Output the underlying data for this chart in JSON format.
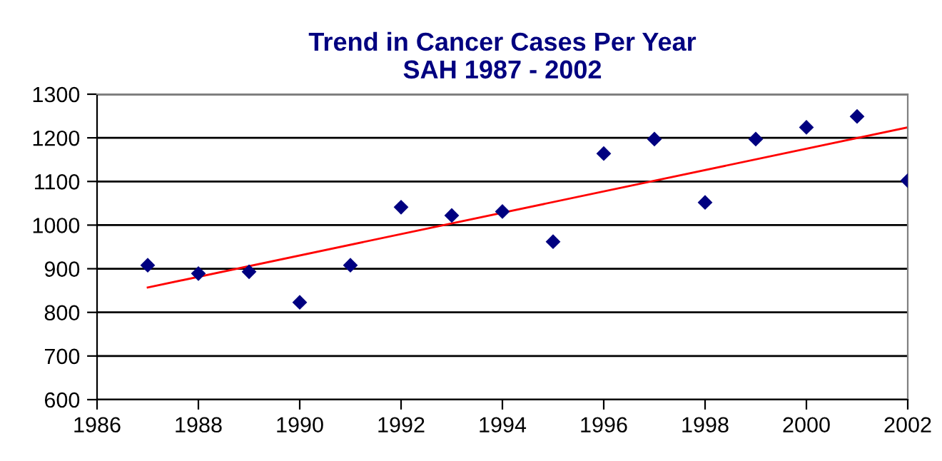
{
  "chart_data": {
    "type": "scatter",
    "title": "Trend in Cancer Cases Per Year\nSAH 1987 - 2002",
    "grid": "y",
    "xlim": [
      1986,
      2002
    ],
    "xticks": [
      1986,
      1988,
      1990,
      1992,
      1994,
      1996,
      1998,
      2000,
      2002
    ],
    "ylim": [
      600,
      1300
    ],
    "yticks": [
      600,
      700,
      800,
      900,
      1000,
      1100,
      1200,
      1300
    ],
    "series": [
      {
        "marker": "diamond",
        "color": "#000080",
        "x": [
          1987,
          1988,
          1989,
          1990,
          1991,
          1992,
          1993,
          1994,
          1995,
          1996,
          1997,
          1998,
          1999,
          2000,
          2001,
          2002
        ],
        "values": [
          908,
          889,
          893,
          823,
          908,
          1041,
          1022,
          1031,
          962,
          1164,
          1197,
          1052,
          1197,
          1224,
          1249,
          1102
        ]
      },
      {
        "type": "line",
        "marker": "none",
        "color": "#ff0000",
        "line_style": "solid",
        "x": [
          1987,
          2002
        ],
        "values": [
          857,
          1224
        ]
      }
    ]
  }
}
